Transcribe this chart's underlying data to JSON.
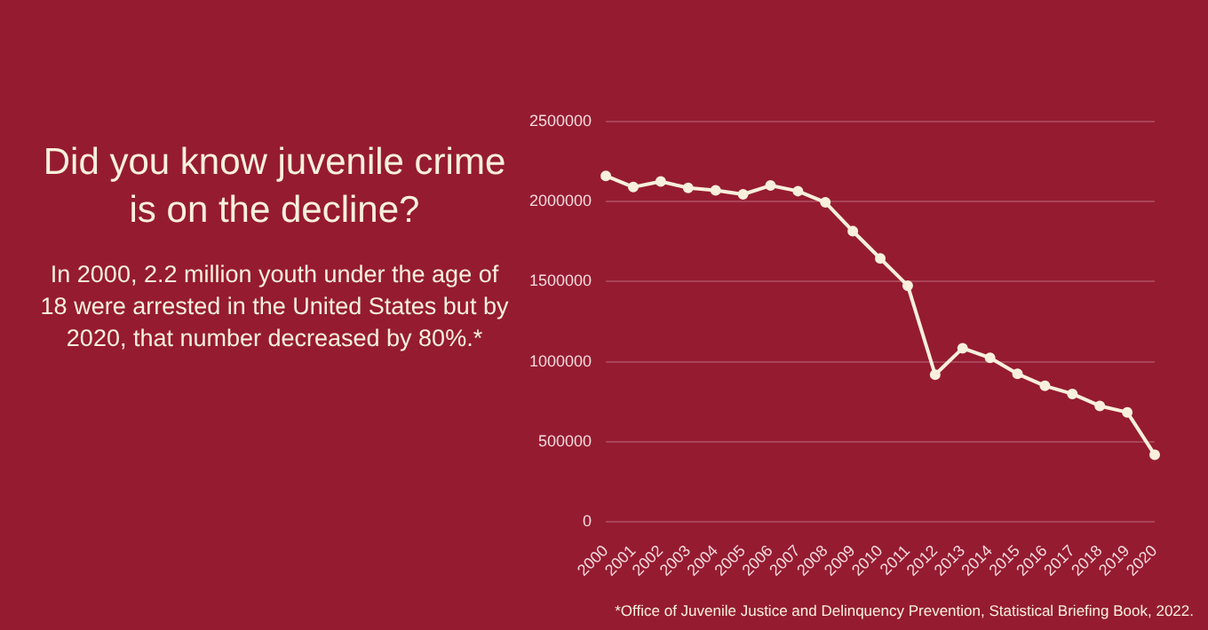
{
  "chart_data": {
    "type": "line",
    "title": "Did you know juvenile crime is on the decline?",
    "subtitle": "In 2000, 2.2 million youth under the age of 18 were arrested in the United States but by 2020, that number decreased by 80%.*",
    "annotations": [
      "*Office of Juvenile Justice and Delinquency Prevention, Statistical Briefing Book, 2022."
    ],
    "categories": [
      "2000",
      "2001",
      "2002",
      "2003",
      "2004",
      "2005",
      "2006",
      "2007",
      "2008",
      "2009",
      "2010",
      "2011",
      "2012",
      "2013",
      "2014",
      "2015",
      "2016",
      "2017",
      "2018",
      "2019",
      "2020"
    ],
    "series": [
      {
        "color": "#f8f0dc",
        "values": [
          2160000,
          2090000,
          2125000,
          2085000,
          2070000,
          2045000,
          2100000,
          2065000,
          1995000,
          1815000,
          1645000,
          1475000,
          920000,
          1085000,
          1025000,
          925000,
          850000,
          800000,
          725000,
          685000,
          420000
        ]
      }
    ],
    "ylim": [
      0,
      2500000
    ],
    "yticks": [
      0,
      500000,
      1000000,
      1500000,
      2000000,
      2500000
    ],
    "grid": "y",
    "marker": "circle",
    "legend": false
  }
}
